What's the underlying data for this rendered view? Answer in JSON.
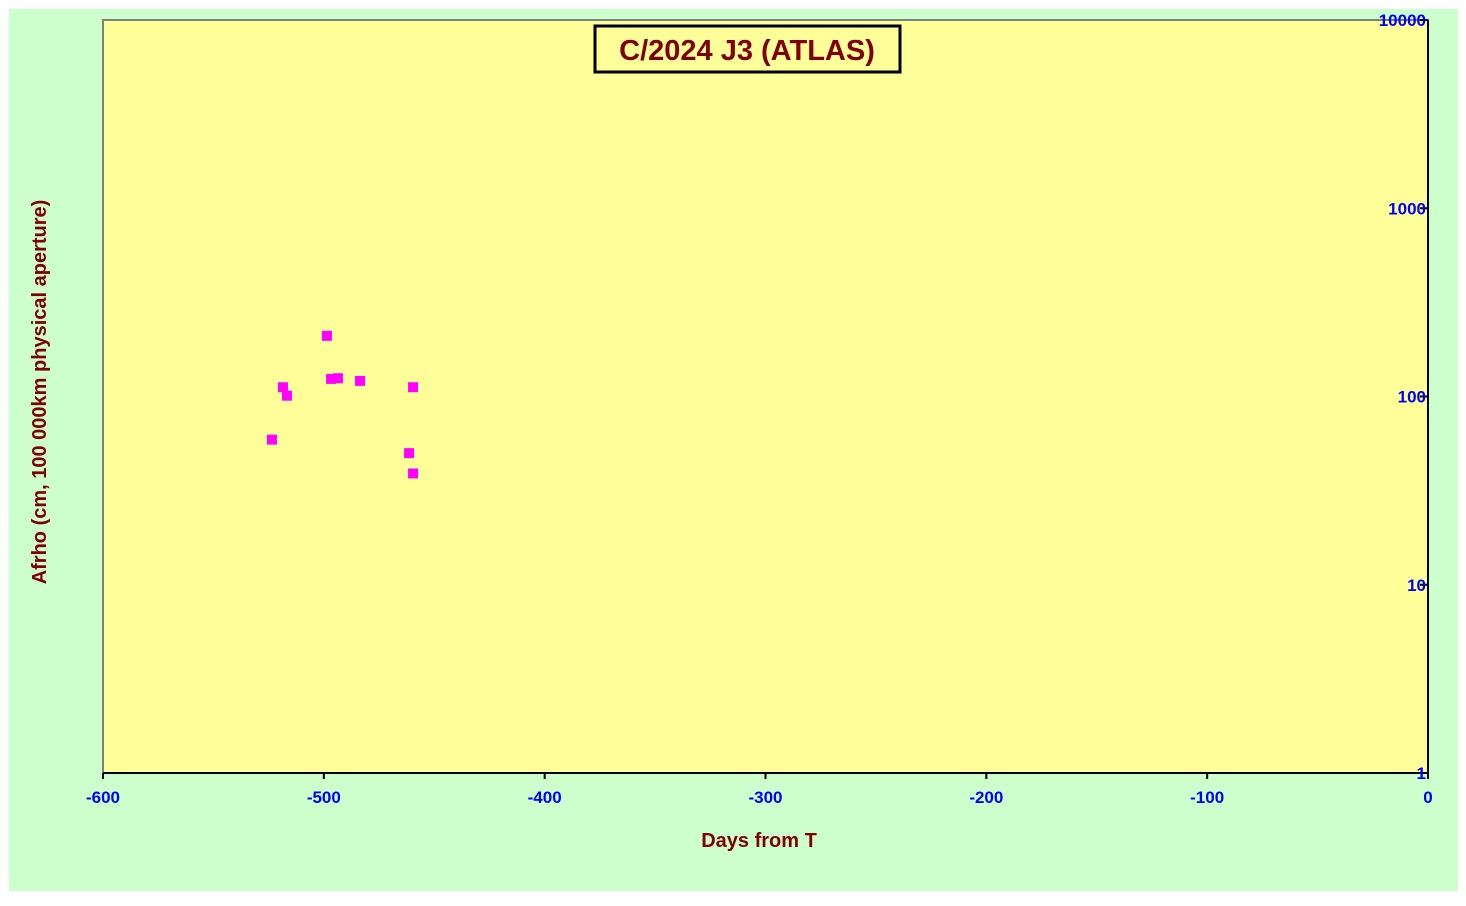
{
  "chart_data": {
    "type": "scatter",
    "title": "C/2024 J3 (ATLAS)",
    "x_label": "Days from  T",
    "y_label": "Afrho (cm, 100 000km physical aperture)",
    "series": [
      {
        "name": "Afrho",
        "color": "#ff00ff",
        "x": [
          -523.5,
          -518.5,
          -516.7,
          -498.6,
          -496.7,
          -493.6,
          -483.6,
          -461.4,
          -459.6,
          -459.6
        ],
        "values": [
          59,
          112,
          101,
          210,
          124,
          125,
          121,
          50,
          112,
          39
        ]
      }
    ],
    "xlim": [
      -600,
      0
    ],
    "xticks": [
      -600,
      -500,
      -400,
      -300,
      -200,
      -100,
      0
    ],
    "ylim": [
      1,
      10000
    ],
    "yticks": [
      1,
      10,
      100,
      1000,
      10000
    ],
    "log_y": true,
    "y_axis_side": "right"
  }
}
